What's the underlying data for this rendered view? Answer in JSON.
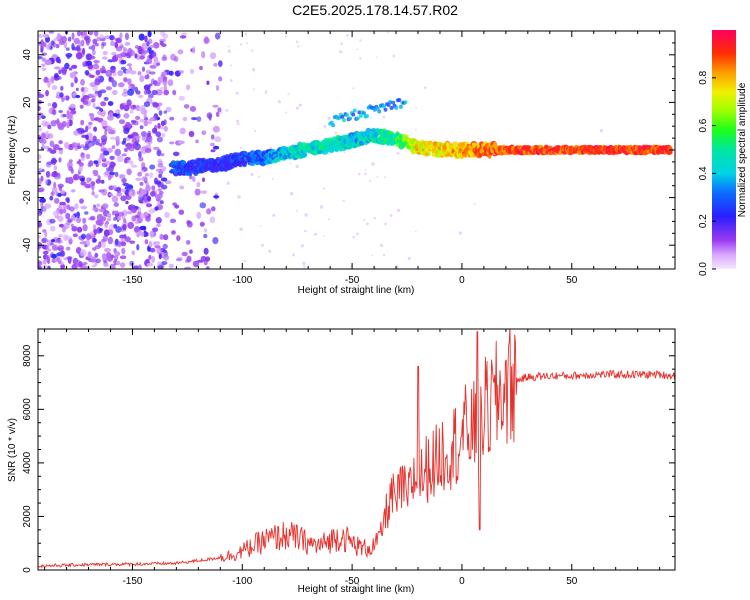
{
  "title": "C2E5.2025.178.14.57.R02",
  "chart_data": [
    {
      "type": "heatmap",
      "xlabel": "Height of straight line (km)",
      "ylabel": "Frequency (Hz)",
      "xlim": [
        -193,
        97
      ],
      "ylim": [
        -50,
        50
      ],
      "xticks": [
        -150,
        -100,
        -50,
        0,
        50
      ],
      "yticks": [
        -40,
        -20,
        0,
        20,
        40
      ],
      "colorbar": {
        "label": "Normalized spectral amplitude",
        "range": [
          0.0,
          1.0
        ],
        "ticks": [
          0.0,
          0.2,
          0.4,
          0.6,
          0.8
        ],
        "tick_labels": [
          "0.0",
          "0.2",
          "0.4",
          "0.6",
          "0.8"
        ]
      },
      "ridge": {
        "description_points_x": [
          -130,
          -110,
          -100,
          -90,
          -80,
          -70,
          -60,
          -50,
          -40,
          -30,
          -20,
          -10,
          0,
          10,
          20,
          50,
          95
        ],
        "center_freq_hz": [
          -8,
          -6,
          -4,
          -3,
          -1,
          0,
          2,
          4,
          6,
          5,
          1,
          0,
          0,
          0,
          0,
          0,
          0
        ],
        "peak_amplitude": [
          0.35,
          0.3,
          0.35,
          0.4,
          0.5,
          0.55,
          0.55,
          0.5,
          0.55,
          0.6,
          0.85,
          0.85,
          0.9,
          0.95,
          1.0,
          1.0,
          1.0
        ]
      },
      "noise_region_x": [
        -193,
        -110
      ]
    },
    {
      "type": "line",
      "xlabel": "Height of straight line (km)",
      "ylabel": "SNR (10 * v/v)",
      "xlim": [
        -193,
        97
      ],
      "ylim": [
        0,
        9000
      ],
      "xticks": [
        -150,
        -100,
        -50,
        0,
        50
      ],
      "yticks": [
        0,
        2000,
        4000,
        6000,
        8000
      ],
      "color": "#e8302b",
      "series": [
        {
          "x": [
            -193,
            -170,
            -150,
            -130,
            -115,
            -105,
            -100,
            -95,
            -90,
            -85,
            -80,
            -75,
            -70,
            -65,
            -60,
            -55,
            -50,
            -45,
            -40,
            -37,
            -35,
            -32,
            -30,
            -27,
            -25,
            -22,
            -20,
            -18,
            -15,
            -12,
            -10,
            -7,
            -5,
            -2,
            0,
            3,
            5,
            8,
            10,
            13,
            15,
            18,
            20,
            25,
            30,
            40,
            50,
            60,
            70,
            80,
            90,
            97
          ],
          "y": [
            150,
            200,
            220,
            250,
            400,
            550,
            700,
            900,
            1100,
            1200,
            1300,
            1200,
            1000,
            900,
            1100,
            1300,
            1000,
            800,
            900,
            1300,
            2000,
            2800,
            2500,
            3200,
            2600,
            3500,
            3000,
            3600,
            3900,
            4000,
            4300,
            4500,
            4600,
            4800,
            5000,
            5300,
            5200,
            5600,
            5900,
            6100,
            6300,
            6600,
            6900,
            7100,
            7200,
            7250,
            7250,
            7300,
            7300,
            7300,
            7300,
            7250
          ]
        }
      ]
    }
  ]
}
